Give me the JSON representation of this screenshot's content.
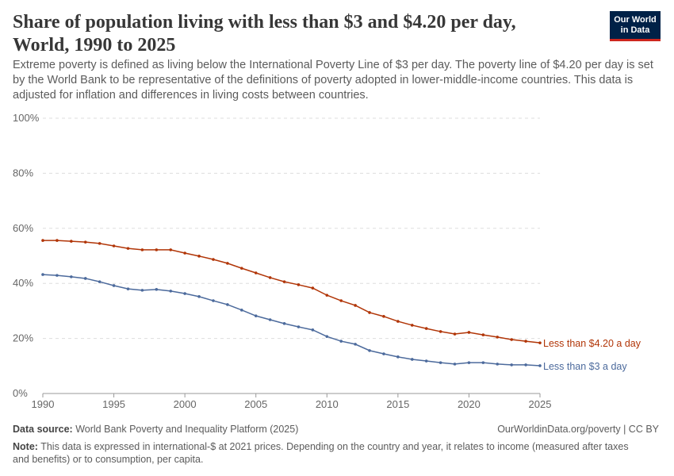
{
  "header": {
    "title": "Share of population living with less than $3 and $4.20 per day, World, 1990 to 2025",
    "subtitle": "Extreme poverty is defined as living below the International Poverty Line of $3 per day. The poverty line of $4.20 per day is set by the World Bank to be representative of the definitions of poverty adopted in lower-middle-income countries. This data is adjusted for inflation and differences in living costs between countries.",
    "logo": "Our World in Data"
  },
  "footer": {
    "source_label": "Data source:",
    "source": "World Bank Poverty and Inequality Platform (2025)",
    "url": "OurWorldinData.org/poverty | CC BY",
    "note_label": "Note:",
    "note": "This data is expressed in international-$ at 2021 prices. Depending on the country and year, it relates to income (measured after taxes and benefits) or to consumption, per capita."
  },
  "chart_data": {
    "type": "line",
    "x": [
      1990,
      1991,
      1992,
      1993,
      1994,
      1995,
      1996,
      1997,
      1998,
      1999,
      2000,
      2001,
      2002,
      2003,
      2004,
      2005,
      2006,
      2007,
      2008,
      2009,
      2010,
      2011,
      2012,
      2013,
      2014,
      2015,
      2016,
      2017,
      2018,
      2019,
      2020,
      2021,
      2022,
      2023,
      2024,
      2025
    ],
    "series": [
      {
        "name": "Less than $4.20 a day",
        "color": "#b13507",
        "values": [
          55.6,
          55.6,
          55.3,
          55.0,
          54.5,
          53.6,
          52.7,
          52.2,
          52.2,
          52.2,
          51.0,
          49.9,
          48.7,
          47.3,
          45.5,
          43.8,
          42.1,
          40.6,
          39.5,
          38.3,
          35.7,
          33.7,
          32.0,
          29.4,
          28.0,
          26.2,
          24.8,
          23.6,
          22.5,
          21.6,
          22.2,
          21.3,
          20.5,
          19.6,
          19.0,
          18.4
        ]
      },
      {
        "name": "Less than $3 a day",
        "color": "#4c6a9c",
        "values": [
          43.2,
          42.9,
          42.4,
          41.8,
          40.6,
          39.2,
          38.0,
          37.5,
          37.8,
          37.2,
          36.3,
          35.2,
          33.7,
          32.3,
          30.3,
          28.2,
          26.8,
          25.4,
          24.2,
          23.1,
          20.7,
          19.0,
          17.9,
          15.6,
          14.4,
          13.3,
          12.4,
          11.8,
          11.2,
          10.7,
          11.2,
          11.2,
          10.7,
          10.4,
          10.4,
          10.1
        ]
      }
    ],
    "xlim": [
      1990,
      2025
    ],
    "ylim": [
      0,
      100
    ],
    "xticks": [
      "1990",
      "1995",
      "2000",
      "2005",
      "2010",
      "2015",
      "2020",
      "2025"
    ],
    "yticks": [
      "0%",
      "20%",
      "40%",
      "60%",
      "80%",
      "100%"
    ],
    "grid": true,
    "legend": "right-end labels"
  }
}
